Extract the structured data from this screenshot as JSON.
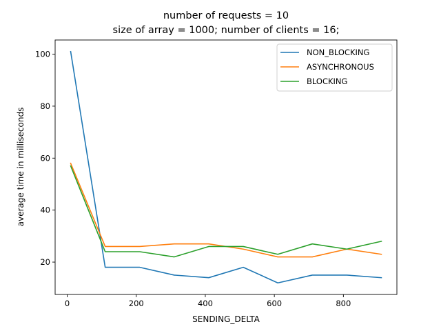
{
  "chart_data": {
    "type": "line",
    "title": [
      "number of requests = 10",
      "size of array = 1000; number of clients = 16;"
    ],
    "xlabel": "SENDING_DELTA",
    "ylabel": "average time in milliseconds",
    "x": [
      10,
      110,
      210,
      310,
      410,
      510,
      610,
      710,
      810,
      910
    ],
    "series": [
      {
        "name": "NON_BLOCKING",
        "color": "#1f77b4",
        "values": [
          101,
          18,
          18,
          15,
          14,
          18,
          12,
          15,
          15,
          14
        ]
      },
      {
        "name": "ASYNCHRONOUS",
        "color": "#ff7f0e",
        "values": [
          58,
          26,
          26,
          27,
          27,
          25,
          22,
          22,
          25,
          23
        ]
      },
      {
        "name": "BLOCKING",
        "color": "#2ca02c",
        "values": [
          57,
          24,
          24,
          22,
          26,
          26,
          23,
          27,
          25,
          28
        ]
      }
    ],
    "xlim": [
      -35,
      955
    ],
    "ylim": [
      7.55,
      105.45
    ],
    "xticks": [
      0,
      200,
      400,
      600,
      800
    ],
    "yticks": [
      20,
      40,
      60,
      80,
      100
    ],
    "grid": false,
    "legend_position": "top-right"
  }
}
